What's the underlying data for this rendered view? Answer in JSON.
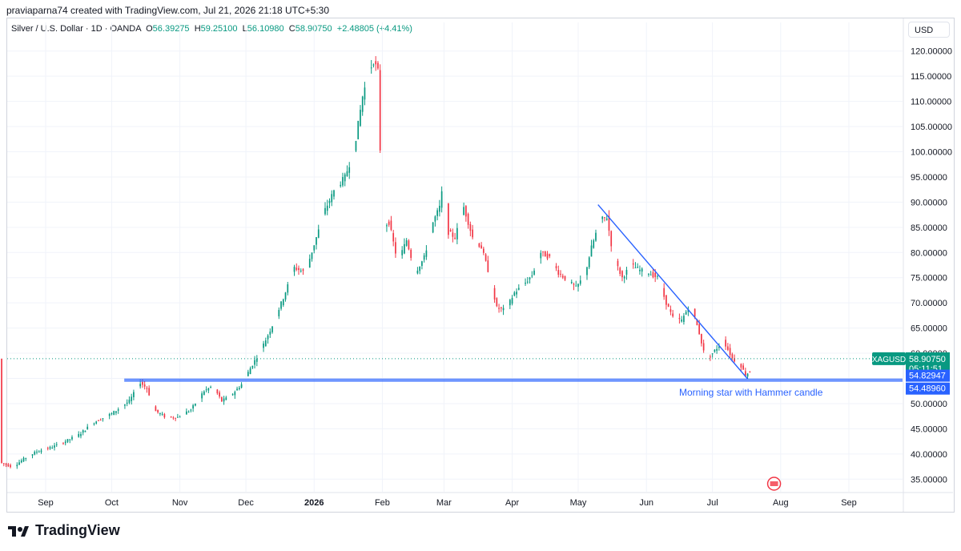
{
  "header": {
    "text": "praviaparna74 created with TradingView.com, Jul 21, 2026 21:18 UTC+5:30"
  },
  "legend": {
    "title": "Silver / U.S. Dollar · 1D · OANDA",
    "o_label": "O",
    "o_value": "56.39275",
    "h_label": "H",
    "h_value": "59.25100",
    "l_label": "L",
    "l_value": "56.10980",
    "c_label": "C",
    "c_value": "58.90750",
    "change": "+2.48805 (+4.41%)"
  },
  "currency_button": "USD",
  "footer": {
    "brand": "TradingView"
  },
  "colors": {
    "up": "#089981",
    "down": "#f23645",
    "line": "#2962ff",
    "grid": "#f0f3fa",
    "text": "#131722"
  },
  "chart_data": {
    "type": "candlestick",
    "symbol": "XAGUSD",
    "ylim": [
      32.5,
      122.5
    ],
    "y_ticks": [
      "35.00000",
      "40.00000",
      "45.00000",
      "50.00000",
      "55.00000",
      "60.00000",
      "65.00000",
      "70.00000",
      "75.00000",
      "80.00000",
      "85.00000",
      "90.00000",
      "95.00000",
      "100.00000",
      "105.00000",
      "110.00000",
      "115.00000",
      "120.00000"
    ],
    "x_ticks": [
      {
        "label": "Sep",
        "day": 20,
        "bold": false
      },
      {
        "label": "Oct",
        "day": 50,
        "bold": false
      },
      {
        "label": "Nov",
        "day": 81,
        "bold": false
      },
      {
        "label": "Dec",
        "day": 111,
        "bold": false
      },
      {
        "label": "2026",
        "day": 142,
        "bold": true
      },
      {
        "label": "Feb",
        "day": 173,
        "bold": false
      },
      {
        "label": "Mar",
        "day": 201,
        "bold": false
      },
      {
        "label": "Apr",
        "day": 232,
        "bold": false
      },
      {
        "label": "May",
        "day": 262,
        "bold": false
      },
      {
        "label": "Jun",
        "day": 293,
        "bold": false
      },
      {
        "label": "Jul",
        "day": 323,
        "bold": false
      },
      {
        "label": "Aug",
        "day": 354,
        "bold": false
      },
      {
        "label": "Sep",
        "day": 385,
        "bold": false
      }
    ],
    "price_anchors": [
      [
        0,
        38.2
      ],
      [
        5,
        37.4
      ],
      [
        10,
        39.0
      ],
      [
        16,
        40.5
      ],
      [
        22,
        41.2
      ],
      [
        28,
        42.3
      ],
      [
        35,
        43.8
      ],
      [
        42,
        46.3
      ],
      [
        50,
        48.0
      ],
      [
        58,
        50.5
      ],
      [
        63,
        54.2
      ],
      [
        66,
        53.0
      ],
      [
        70,
        48.5
      ],
      [
        75,
        47.2
      ],
      [
        80,
        47.3
      ],
      [
        86,
        48.8
      ],
      [
        92,
        52.5
      ],
      [
        96,
        53.5
      ],
      [
        100,
        50.5
      ],
      [
        104,
        51.5
      ],
      [
        109,
        53.8
      ],
      [
        113,
        57.0
      ],
      [
        118,
        60.8
      ],
      [
        123,
        65.5
      ],
      [
        128,
        71.0
      ],
      [
        133,
        77.0
      ],
      [
        138,
        76.0
      ],
      [
        143,
        83.0
      ],
      [
        147,
        88.5
      ],
      [
        151,
        92.2
      ],
      [
        156,
        95.0
      ],
      [
        160,
        100.0
      ],
      [
        164,
        111.0
      ],
      [
        167,
        116.0
      ],
      [
        169,
        118.0
      ],
      [
        171,
        116.0
      ],
      [
        173,
        85.0
      ],
      [
        176,
        86.0
      ],
      [
        180,
        78.0
      ],
      [
        184,
        82.5
      ],
      [
        188,
        76.0
      ],
      [
        192,
        79.0
      ],
      [
        196,
        86.0
      ],
      [
        199,
        89.0
      ],
      [
        201,
        94.5
      ],
      [
        203,
        84.0
      ],
      [
        206,
        83.0
      ],
      [
        210,
        89.0
      ],
      [
        214,
        83.0
      ],
      [
        218,
        81.0
      ],
      [
        222,
        75.0
      ],
      [
        225,
        69.0
      ],
      [
        229,
        68.5
      ],
      [
        233,
        72.0
      ],
      [
        237,
        73.5
      ],
      [
        241,
        75.5
      ],
      [
        245,
        80.0
      ],
      [
        249,
        79.0
      ],
      [
        253,
        76.0
      ],
      [
        257,
        74.5
      ],
      [
        261,
        73.0
      ],
      [
        265,
        75.5
      ],
      [
        268,
        81.0
      ],
      [
        272,
        86.5
      ],
      [
        275,
        87.0
      ],
      [
        278,
        79.0
      ],
      [
        282,
        75.0
      ],
      [
        286,
        77.5
      ],
      [
        290,
        76.5
      ],
      [
        294,
        76.0
      ],
      [
        298,
        75.0
      ],
      [
        302,
        70.0
      ],
      [
        305,
        67.0
      ],
      [
        309,
        66.5
      ],
      [
        313,
        70.0
      ],
      [
        317,
        64.0
      ],
      [
        320,
        58.5
      ],
      [
        324,
        60.5
      ],
      [
        328,
        62.5
      ],
      [
        332,
        59.0
      ],
      [
        336,
        57.5
      ],
      [
        338,
        55.7
      ],
      [
        340,
        56.4
      ],
      [
        341,
        58.9
      ]
    ],
    "last_candle": {
      "open": 56.39275,
      "high": 59.251,
      "low": 56.1098,
      "close": 58.9075
    },
    "support_lines": [
      54.82947,
      54.4896
    ],
    "trendline": {
      "from": {
        "day": 271,
        "price": 89.5
      },
      "to": {
        "day": 339,
        "price": 54.9
      }
    },
    "price_labels": [
      {
        "text": "58.90750",
        "sub": "05:11:51",
        "value": 58.9075,
        "tag": "XAGUSD"
      },
      {
        "text": "54.82947",
        "value": 54.82947
      },
      {
        "text": "54.48960",
        "value": 54.4896
      }
    ],
    "annotation": "Morning star with Hammer candle"
  }
}
